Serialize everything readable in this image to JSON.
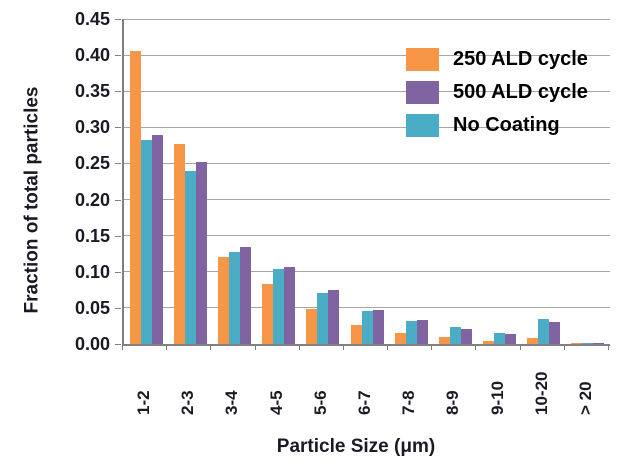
{
  "chart_data": {
    "type": "bar",
    "title": "",
    "xlabel": "Particle Size (μm)",
    "ylabel": "Fraction of total particles",
    "categories": [
      "1-2",
      "2-3",
      "3-4",
      "4-5",
      "5-6",
      "6-7",
      "7-8",
      "8-9",
      "9-10",
      "10-20",
      "> 20"
    ],
    "series": [
      {
        "name": "250 ALD cycle",
        "color": "#F79646",
        "values": [
          0.405,
          0.277,
          0.12,
          0.083,
          0.049,
          0.026,
          0.015,
          0.01,
          0.004,
          0.008,
          0.001
        ]
      },
      {
        "name": "No Coating",
        "color": "#4BACC6",
        "values": [
          0.283,
          0.24,
          0.128,
          0.104,
          0.071,
          0.046,
          0.032,
          0.023,
          0.015,
          0.034,
          0.002
        ]
      },
      {
        "name": "500 ALD cycle",
        "color": "#8064A2",
        "values": [
          0.29,
          0.252,
          0.134,
          0.106,
          0.075,
          0.047,
          0.033,
          0.021,
          0.014,
          0.03,
          0.002
        ]
      }
    ],
    "legend": [
      {
        "label": "250 ALD cycle",
        "color": "#F79646"
      },
      {
        "label": "500 ALD cycle",
        "color": "#8064A2"
      },
      {
        "label": "No Coating",
        "color": "#4BACC6"
      }
    ],
    "legend_position": "top-right",
    "grid": true,
    "ylim": [
      0,
      0.45
    ],
    "ytick_step": 0.05,
    "y_tick_labels": [
      "0.45",
      "0.40",
      "0.35",
      "0.30",
      "0.25",
      "0.20",
      "0.15",
      "0.10",
      "0.05",
      "0.00"
    ]
  },
  "colors": {
    "background": "#FFFFFF",
    "gridline": "#A6A6A6",
    "axis_line": "#808080",
    "axis_text": "#1A1A24",
    "legend_text": "#000000"
  }
}
